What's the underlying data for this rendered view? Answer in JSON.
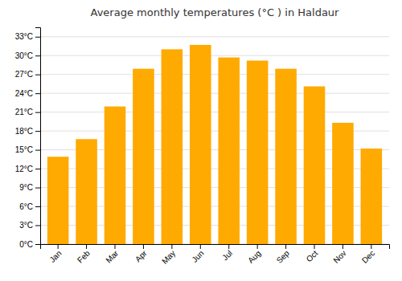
{
  "chart_data": {
    "type": "bar",
    "title": "Average monthly temperatures (°C ) in Haldaur",
    "categories": [
      "Jan",
      "Feb",
      "Mar",
      "Apr",
      "May",
      "Jun",
      "Jul",
      "Aug",
      "Sep",
      "Oct",
      "Nov",
      "Dec"
    ],
    "values": [
      13.9,
      16.7,
      21.9,
      27.9,
      31.0,
      31.7,
      29.7,
      29.2,
      27.9,
      25.1,
      19.3,
      15.2
    ],
    "color": "#FFAA00",
    "ylim": [
      0,
      34.5
    ],
    "yticks": [
      {
        "value": 0,
        "label": "0°C"
      },
      {
        "value": 3,
        "label": "3°C"
      },
      {
        "value": 6,
        "label": "6°C"
      },
      {
        "value": 9,
        "label": "9°C"
      },
      {
        "value": 12,
        "label": "12°C"
      },
      {
        "value": 15,
        "label": "15°C"
      },
      {
        "value": 18,
        "label": "18°C"
      },
      {
        "value": 21,
        "label": "21°C"
      },
      {
        "value": 24,
        "label": "24°C"
      },
      {
        "value": 27,
        "label": "27°C"
      },
      {
        "value": 30,
        "label": "30°C"
      },
      {
        "value": 33,
        "label": "33°C"
      }
    ],
    "grid": true
  }
}
